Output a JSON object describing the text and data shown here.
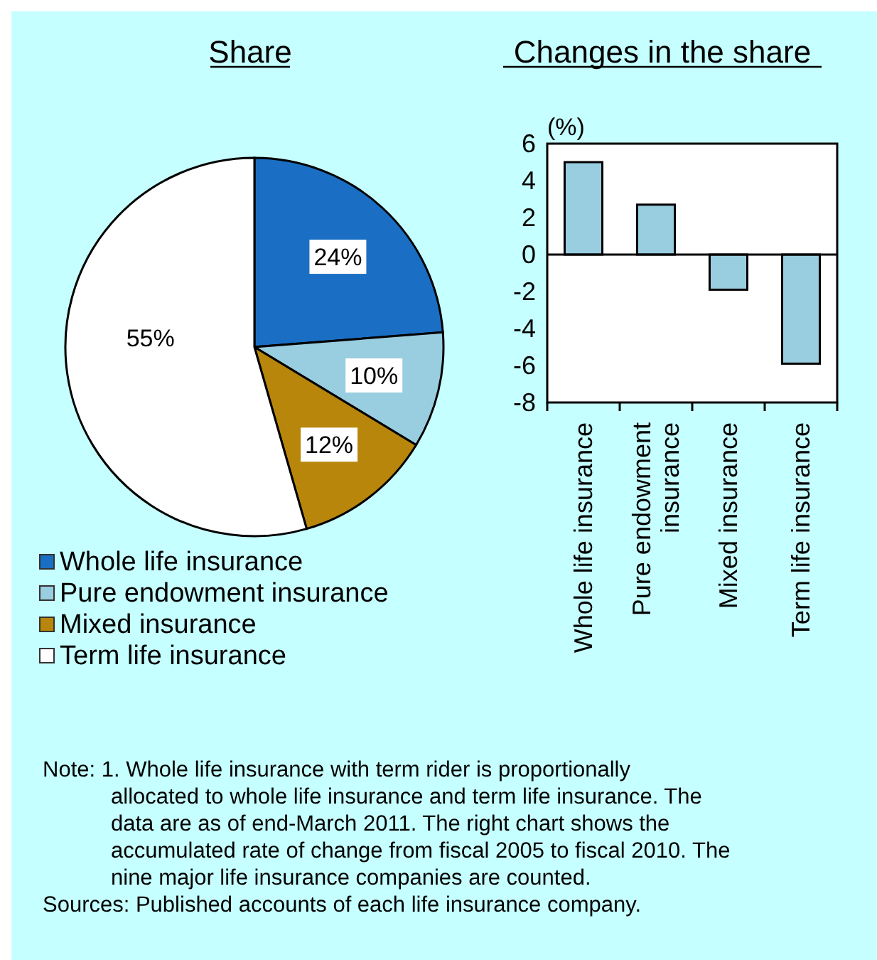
{
  "chart_data": [
    {
      "type": "pie",
      "title": "Share",
      "categories": [
        "Whole life insurance",
        "Pure endowment insurance",
        "Mixed insurance",
        "Term life insurance"
      ],
      "values": [
        24,
        10,
        12,
        55
      ],
      "value_labels": [
        "24%",
        "10%",
        "12%",
        "55%"
      ],
      "colors": [
        "#1a6fc4",
        "#99cde0",
        "#b8860b",
        "#ffffff"
      ],
      "legend": "bottom left"
    },
    {
      "type": "bar",
      "title": "Changes in the share",
      "ylabel": "(%)",
      "categories": [
        "Whole life insurance",
        "Pure endowment insurance",
        "Mixed insurance",
        "Term life insurance"
      ],
      "values": [
        5.0,
        2.7,
        -1.9,
        -5.9
      ],
      "color": "#99cde0",
      "ylim": [
        -8,
        6
      ],
      "yticks": [
        6,
        4,
        2,
        0,
        -2,
        -4,
        -6,
        -8
      ],
      "annotations": [
        "Note: 1. Whole life insurance with term rider is proportionally allocated to whole life insurance and term life insurance. The data are as of end-March 2011. The right chart shows the accumulated rate of change from fiscal 2005 to fiscal 2010. The nine major life insurance companies are counted.",
        "Sources: Published accounts of each life insurance company."
      ]
    }
  ]
}
